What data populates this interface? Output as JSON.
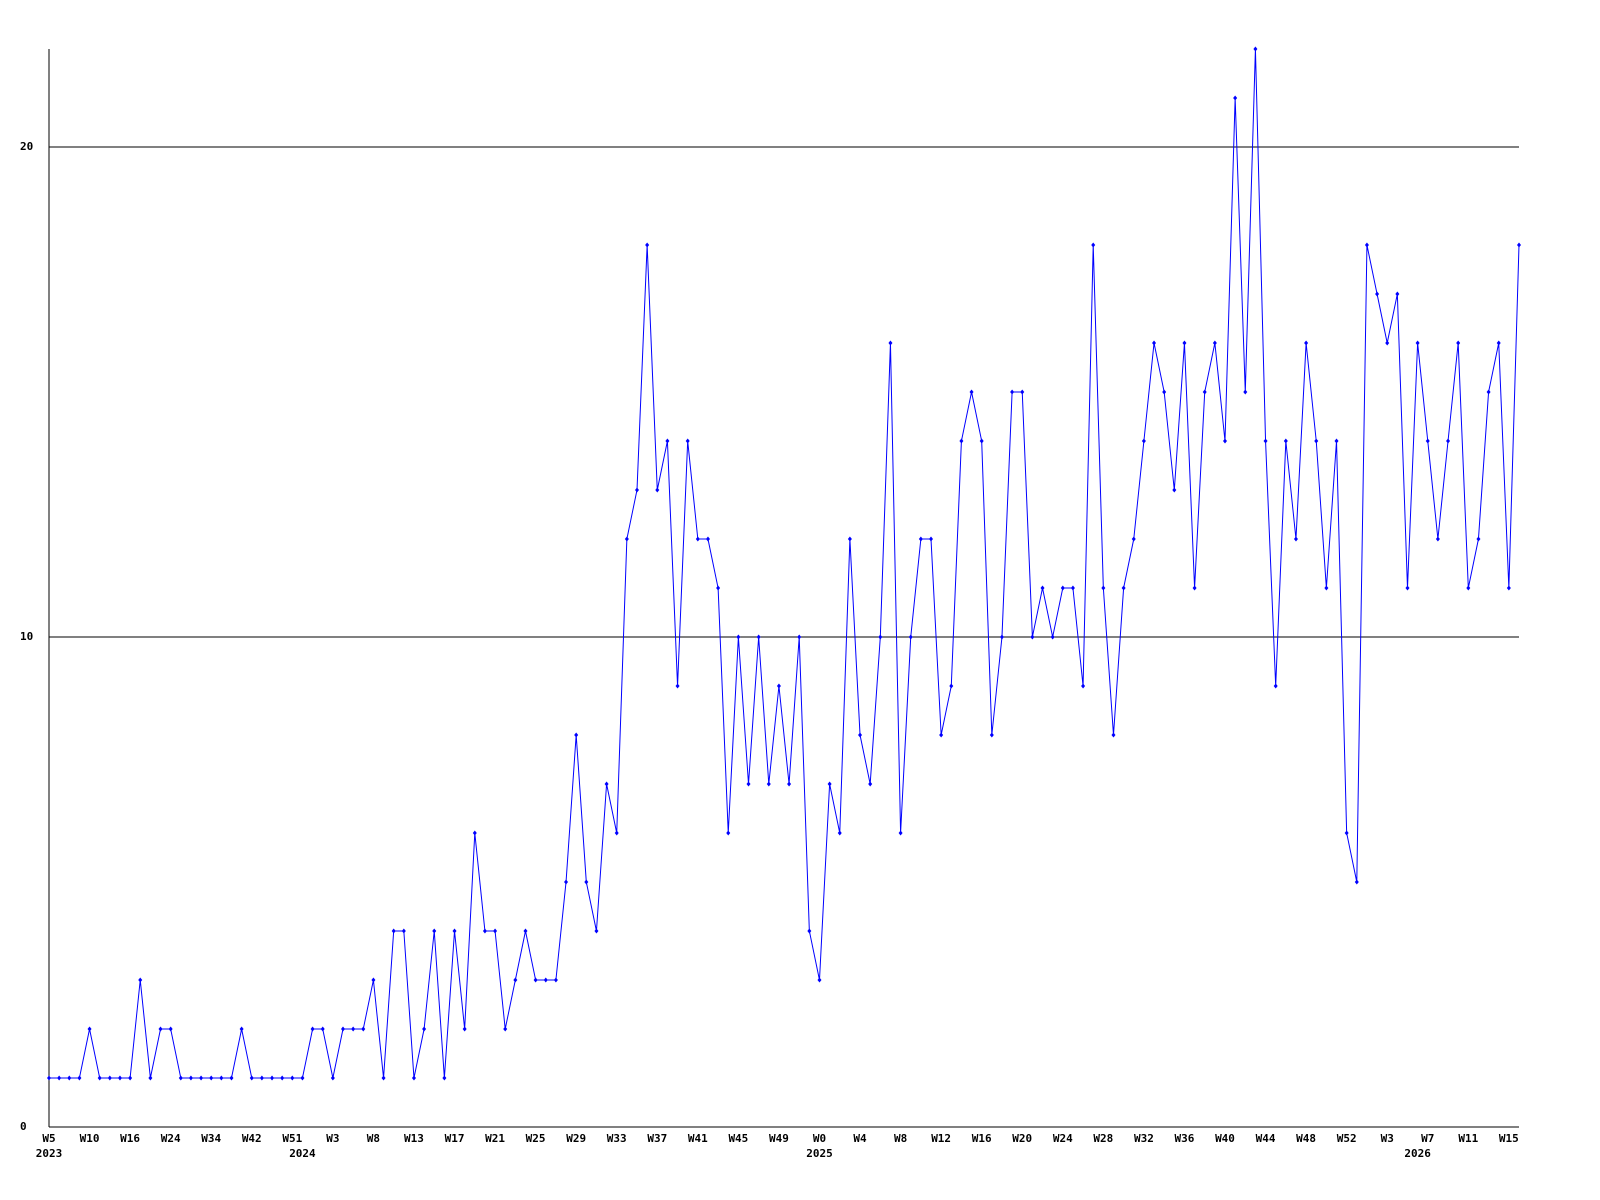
{
  "chart_data": {
    "type": "line",
    "categories": [
      "W5",
      null,
      null,
      null,
      "W10",
      null,
      null,
      null,
      "W16",
      null,
      null,
      null,
      "W24",
      null,
      null,
      null,
      "W34",
      null,
      null,
      null,
      "W42",
      null,
      null,
      null,
      "W51",
      null,
      null,
      null,
      "W3",
      null,
      null,
      null,
      "W8",
      null,
      null,
      null,
      "W13",
      null,
      null,
      null,
      "W17",
      null,
      null,
      null,
      "W21",
      null,
      null,
      null,
      "W25",
      null,
      null,
      null,
      "W29",
      null,
      null,
      null,
      "W33",
      null,
      null,
      null,
      "W37",
      null,
      null,
      null,
      "W41",
      null,
      null,
      null,
      "W45",
      null,
      null,
      null,
      "W49",
      null,
      null,
      null,
      "W0",
      null,
      null,
      null,
      "W4",
      null,
      null,
      null,
      "W8",
      null,
      null,
      null,
      "W12",
      null,
      null,
      null,
      "W16",
      null,
      null,
      null,
      "W20",
      null,
      null,
      null,
      "W24",
      null,
      null,
      null,
      "W28",
      null,
      null,
      null,
      "W32",
      null,
      null,
      null,
      "W36",
      null,
      null,
      null,
      "W40",
      null,
      null,
      null,
      "W44",
      null,
      null,
      null,
      "W48",
      null,
      null,
      null,
      "W52",
      null,
      null,
      null,
      "W3",
      null,
      null,
      null,
      "W7",
      null,
      null,
      null,
      "W11",
      null,
      null,
      null,
      "W15",
      null
    ],
    "years": [
      "2023",
      null,
      null,
      null,
      null,
      null,
      null,
      null,
      null,
      null,
      null,
      null,
      null,
      null,
      null,
      null,
      null,
      null,
      null,
      null,
      null,
      null,
      null,
      null,
      null,
      "2024",
      null,
      null,
      null,
      null,
      null,
      null,
      null,
      null,
      null,
      null,
      null,
      null,
      null,
      null,
      null,
      null,
      null,
      null,
      null,
      null,
      null,
      null,
      null,
      null,
      null,
      null,
      null,
      null,
      null,
      null,
      null,
      null,
      null,
      null,
      null,
      null,
      null,
      null,
      null,
      null,
      null,
      null,
      null,
      null,
      null,
      null,
      null,
      null,
      null,
      null,
      "2025",
      null,
      null,
      null,
      null,
      null,
      null,
      null,
      null,
      null,
      null,
      null,
      null,
      null,
      null,
      null,
      null,
      null,
      null,
      null,
      null,
      null,
      null,
      null,
      null,
      null,
      null,
      null,
      null,
      null,
      null,
      null,
      null,
      null,
      null,
      null,
      null,
      null,
      null,
      null,
      null,
      null,
      null,
      null,
      null,
      null,
      null,
      null,
      null,
      null,
      null,
      null,
      null,
      null,
      null,
      null,
      null,
      null,
      null,
      "2026",
      null,
      null,
      null,
      null,
      null,
      null,
      null,
      null,
      null,
      null,
      null,
      null,
      null,
      null,
      null,
      null
    ],
    "series": [
      {
        "color": "#0000ff",
        "values": [
          1,
          1,
          1,
          1,
          2,
          1,
          1,
          1,
          1,
          3,
          1,
          2,
          2,
          1,
          1,
          1,
          1,
          1,
          1,
          2,
          1,
          1,
          1,
          1,
          1,
          1,
          2,
          2,
          1,
          2,
          2,
          2,
          3,
          1,
          4,
          4,
          1,
          2,
          4,
          1,
          4,
          2,
          6,
          4,
          4,
          2,
          3,
          4,
          3,
          3,
          3,
          5,
          8,
          5,
          4,
          7,
          6,
          12,
          13,
          18,
          13,
          14,
          9,
          14,
          12,
          12,
          11,
          6,
          10,
          7,
          10,
          7,
          9,
          7,
          10,
          4,
          3,
          7,
          6,
          12,
          8,
          7,
          10,
          16,
          6,
          10,
          12,
          12,
          8,
          9,
          14,
          15,
          14,
          8,
          10,
          15,
          15,
          10,
          11,
          10,
          11,
          11,
          9,
          18,
          11,
          8,
          11,
          12,
          14,
          16,
          15,
          13,
          16,
          11,
          15,
          16,
          14,
          21,
          15,
          22,
          14,
          9,
          14,
          12,
          16,
          14,
          11,
          14,
          6,
          5,
          18,
          17,
          16,
          17,
          11,
          16,
          14,
          12,
          14,
          16,
          11,
          12,
          15,
          16,
          11,
          18
        ]
      }
    ],
    "ylim": [
      0,
      22
    ],
    "yticks": [
      0,
      10,
      20
    ],
    "grid": true
  }
}
